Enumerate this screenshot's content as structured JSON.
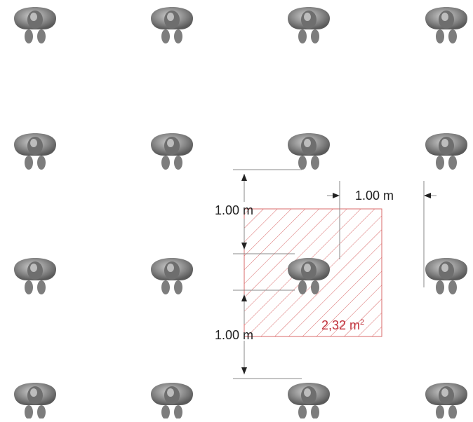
{
  "diagram": {
    "dimension_labels": {
      "horizontal": "1.00 m",
      "vertical_upper": "1.00 m",
      "vertical_lower": "1.00 m"
    },
    "area_label": {
      "value": "2,32 m",
      "unit_exponent": "2"
    },
    "figure": {
      "icon": "person-top-view-icon",
      "rows": 4,
      "columns": 4
    },
    "colors": {
      "background": "#ffffff",
      "figure": "#8a8a8a",
      "hatch": "#d96a6a",
      "area_text": "#c0303a",
      "dimension_lines": "#888888",
      "text": "#222222"
    }
  }
}
